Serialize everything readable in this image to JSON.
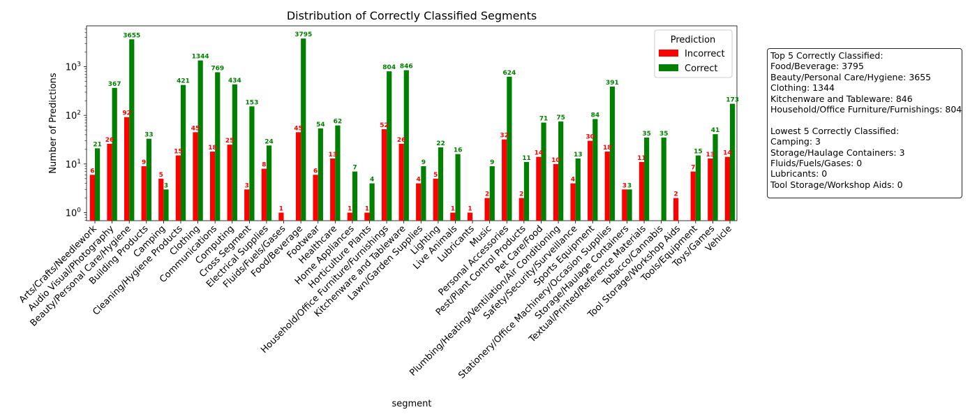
{
  "chart_data": {
    "type": "bar",
    "title": "Distribution of Correctly Classified Segments",
    "xlabel": "segment",
    "ylabel": "Number of Predictions",
    "yscale": "log",
    "ylim": [
      0.67,
      6300
    ],
    "yticks": [
      1,
      10,
      100,
      1000
    ],
    "ytick_labels": [
      [
        "10",
        "0"
      ],
      [
        "10",
        "1"
      ],
      [
        "10",
        "2"
      ],
      [
        "10",
        "3"
      ]
    ],
    "grid": false,
    "legend": {
      "title": "Prediction",
      "placement": "top-right"
    },
    "categories": [
      "Arts/Crafts/Needlework",
      "Audio Visual/Photography",
      "Beauty/Personal Care/Hygiene",
      "Building Products",
      "Camping",
      "Cleaning/Hygiene Products",
      "Clothing",
      "Communications",
      "Computing",
      "Cross Segment",
      "Electrical Supplies",
      "Fluids/Fuels/Gases",
      "Food/Beverage",
      "Footwear",
      "Healthcare",
      "Home Appliances",
      "Horticulture Plants",
      "Household/Office Furniture/Furnishings",
      "Kitchenware and Tableware",
      "Lawn/Garden Supplies",
      "Lighting",
      "Live Animals",
      "Lubricants",
      "Music",
      "Personal Accessories",
      "Pest/Plant Control Products",
      "Pet Care/Food",
      "Plumbing/Heating/Ventilation/Air Conditioning",
      "Safety/Security/Surveillance",
      "Sports Equipment",
      "Stationery/Office Machinery/Occasion Supplies",
      "Storage/Haulage Containers",
      "Textual/Printed/Reference Materials",
      "Tobacco/Cannabis",
      "Tool Storage/Workshop Aids",
      "Tools/Equipment",
      "Toys/Games",
      "Vehicle"
    ],
    "series": [
      {
        "name": "Incorrect",
        "color": "#ff0000",
        "values": [
          6,
          26,
          92,
          9,
          5,
          15,
          45,
          18,
          25,
          3,
          8,
          1,
          45,
          6,
          13,
          1,
          1,
          52,
          26,
          4,
          5,
          1,
          1,
          2,
          32,
          2,
          14,
          10,
          4,
          30,
          18,
          3,
          11,
          0,
          2,
          7,
          13,
          14
        ]
      },
      {
        "name": "Correct",
        "color": "#008000",
        "values": [
          21,
          367,
          3655,
          33,
          3,
          421,
          1344,
          769,
          434,
          153,
          24,
          0,
          3795,
          54,
          62,
          7,
          4,
          804,
          846,
          9,
          22,
          16,
          0,
          9,
          624,
          11,
          71,
          75,
          13,
          84,
          391,
          3,
          35,
          35,
          0,
          15,
          41,
          173
        ]
      }
    ]
  },
  "summary": {
    "lines": [
      "Top 5 Correctly Classified:",
      "Food/Beverage: 3795",
      "Beauty/Personal Care/Hygiene: 3655",
      "Clothing: 1344",
      "Kitchenware and Tableware: 846",
      "Household/Office Furniture/Furnishings: 804",
      "",
      "Lowest 5 Correctly Classified:",
      "Camping: 3",
      "Storage/Haulage Containers: 3",
      "Fluids/Fuels/Gases: 0",
      "Lubricants: 0",
      "Tool Storage/Workshop Aids: 0"
    ]
  }
}
